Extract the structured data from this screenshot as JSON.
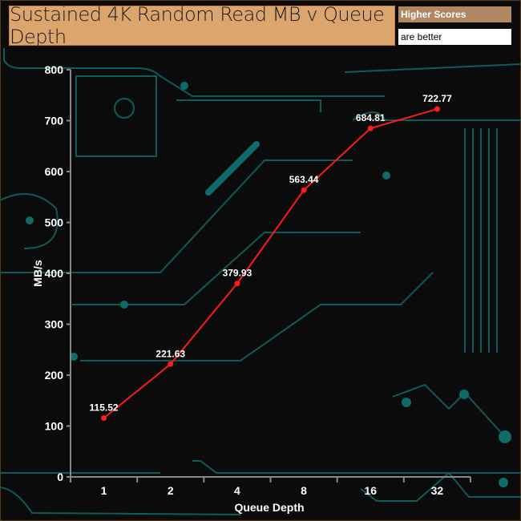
{
  "chart_data": {
    "type": "line",
    "title": "Sustained 4K Random Read MB v Queue Depth",
    "xlabel": "Queue Depth",
    "ylabel": "MB/s",
    "categories": [
      "1",
      "2",
      "4",
      "8",
      "16",
      "32"
    ],
    "values": [
      115.52,
      221.63,
      379.93,
      563.44,
      684.81,
      722.77
    ],
    "data_labels": [
      "115.52",
      "221.63",
      "379.93",
      "563.44",
      "684.81",
      "722.77"
    ],
    "ylim": [
      0,
      800
    ],
    "yticks": [
      "0",
      "100",
      "200",
      "300",
      "400",
      "500",
      "600",
      "700",
      "800"
    ],
    "grid": false,
    "line_color": "#ff1a1a",
    "legend": {
      "line1": "Higher Scores",
      "line2": "are better",
      "placement": "top-right"
    }
  },
  "colors": {
    "background": "#0b0b0b",
    "circuit": "#0f5a5a",
    "title_bg": "#dca56e",
    "legend_bg": "#b08760"
  }
}
